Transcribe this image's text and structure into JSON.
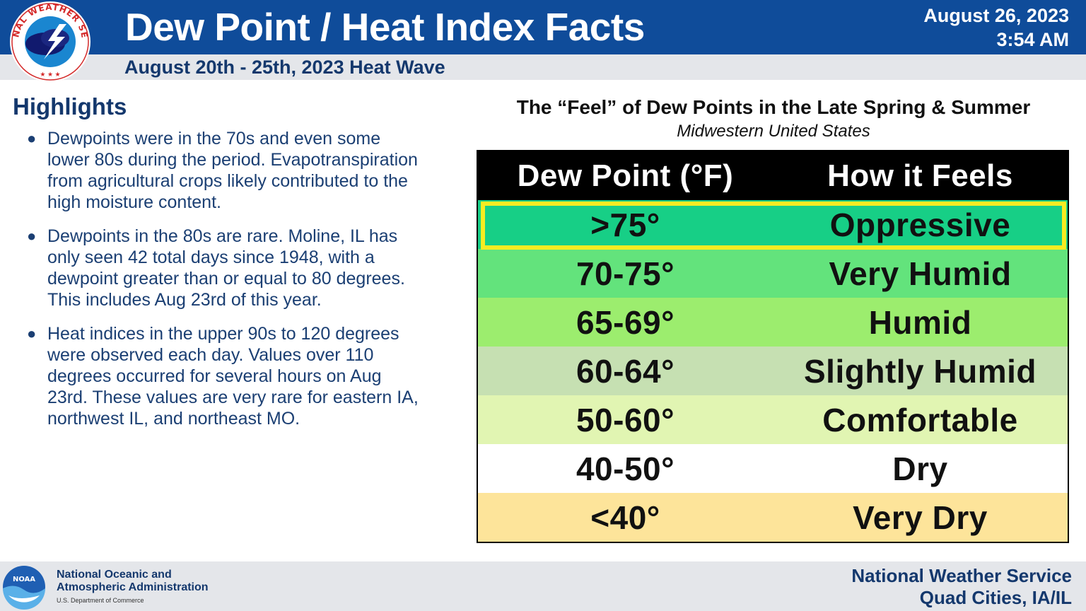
{
  "header": {
    "title": "Dew Point / Heat Index Facts",
    "subtitle": "August 20th - 25th, 2023 Heat Wave",
    "date": "August 26, 2023",
    "time": "3:54 AM",
    "logo_icon": "nws-seal-icon",
    "logo_text": "NATIONAL WEATHER SERVICE"
  },
  "highlights": {
    "title": "Highlights",
    "items": [
      "Dewpoints were in the 70s and even some lower 80s during the period. Evapotranspiration from agricultural crops likely contributed to the high moisture content.",
      "Dewpoints in the 80s are rare.  Moline, IL has only seen 42 total days since 1948, with a dewpoint greater than or equal to 80 degrees. This includes Aug 23rd of this year.",
      "Heat indices in the upper 90s to 120 degrees were observed each day. Values over 110 degrees occurred for several hours on Aug 23rd.  These values are very rare for eastern IA, northwest IL, and northeast MO."
    ]
  },
  "dew_table": {
    "title": "The “Feel” of Dew Points in the Late Spring & Summer",
    "subtitle": "Midwestern United States",
    "headers": [
      "Dew Point (°F)",
      "How it Feels"
    ],
    "rows": [
      {
        "range": ">75°",
        "feel": "Oppressive",
        "color": "#17cf86"
      },
      {
        "range": "70-75°",
        "feel": "Very Humid",
        "color": "#63e37c"
      },
      {
        "range": "65-69°",
        "feel": "Humid",
        "color": "#9ced6e"
      },
      {
        "range": "60-64°",
        "feel": "Slightly Humid",
        "color": "#c6e0b2"
      },
      {
        "range": "50-60°",
        "feel": "Comfortable",
        "color": "#e1f5b2"
      },
      {
        "range": "40-50°",
        "feel": "Dry",
        "color": "#ffffff"
      },
      {
        "range": "<40°",
        "feel": "Very Dry",
        "color": "#fde49a"
      }
    ],
    "highlight_color": "#f8ec22"
  },
  "footer": {
    "noaa_icon": "noaa-logo-icon",
    "noaa_logo_text": "NOAA",
    "noaa_line1": "National Oceanic and",
    "noaa_line2": "Atmospheric Administration",
    "noaa_dept": "U.S. Department of Commerce",
    "nws_line1": "National Weather Service",
    "nws_line2": "Quad Cities, IA/IL"
  },
  "colors": {
    "header_blue": "#0f4c9a",
    "text_navy": "#14386d",
    "panel_gray": "#e4e6ea"
  }
}
